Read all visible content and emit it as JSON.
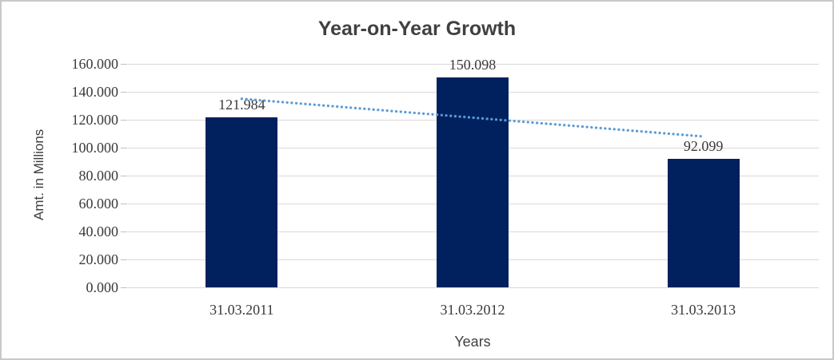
{
  "chart_data": {
    "type": "bar",
    "title": "Year-on-Year Growth",
    "xlabel": "Years",
    "ylabel": "Amt. in Millions",
    "categories": [
      "31.03.2011",
      "31.03.2012",
      "31.03.2013"
    ],
    "values": [
      121.984,
      150.098,
      92.099
    ],
    "data_labels": [
      "121.984",
      "150.098",
      "92.099"
    ],
    "ylim": [
      0,
      160
    ],
    "ytick_step": 20,
    "ytick_labels": [
      "0.000",
      "20.000",
      "40.000",
      "60.000",
      "80.000",
      "100.000",
      "120.000",
      "140.000",
      "160.000"
    ],
    "grid": true,
    "legend": "none",
    "bar_color": "#00215e",
    "gridline_color": "#d9d9d9",
    "title_color": "#404040",
    "trendline": {
      "type": "linear",
      "style": "dotted",
      "color": "#5b9bd5",
      "start_value": 135,
      "end_value": 108
    }
  }
}
